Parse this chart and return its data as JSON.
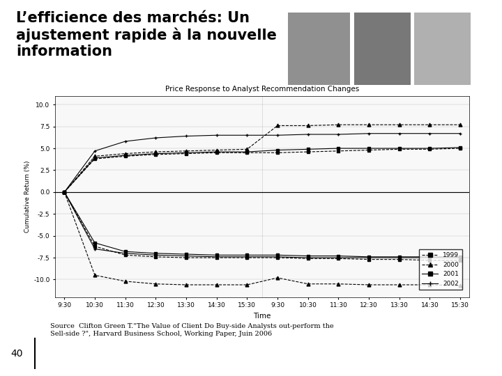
{
  "title": "L’efficience des marchés: Un\najustement rapide à la nouvelle\ninformation",
  "chart_title": "Price Response to Analyst Recommendation Changes",
  "ylabel": "Cumulative Return (%)",
  "xlabel": "Time",
  "source_text": "Source  Clifton Green T.\"The Value of Client Do Buy-side Analysts out-perform the\nSell-side ?\", Harvard Business School, Working Paper, Juin 2006",
  "page_number": "40",
  "ylim": [
    -12,
    11
  ],
  "yticks": [
    -10.0,
    -7.5,
    -5.0,
    -2.5,
    0.0,
    2.5,
    5.0,
    7.5,
    10.0
  ],
  "background_color": "#ffffff",
  "accent_color": "#d4820a",
  "time_labels": [
    "9:30",
    "10:30",
    "11:30",
    "12:30",
    "13:30",
    "14:30",
    "15:30",
    "9:30",
    "10:30",
    "11:30",
    "12:30",
    "13:30",
    "14:30",
    "15:30"
  ],
  "legend_years": [
    "1999",
    "2000",
    "2001",
    "2002"
  ],
  "series": {
    "upgrades": {
      "1999": [
        0,
        3.8,
        4.1,
        4.3,
        4.4,
        4.5,
        4.5,
        4.5,
        4.6,
        4.7,
        4.8,
        4.9,
        4.9,
        5.0
      ],
      "2000": [
        0,
        4.1,
        4.4,
        4.6,
        4.7,
        4.8,
        4.9,
        7.6,
        7.6,
        7.7,
        7.7,
        7.7,
        7.7,
        7.7
      ],
      "2001": [
        0,
        3.9,
        4.2,
        4.4,
        4.5,
        4.6,
        4.6,
        4.8,
        4.9,
        5.0,
        5.0,
        5.0,
        5.0,
        5.1
      ],
      "2002": [
        0,
        4.7,
        5.8,
        6.2,
        6.4,
        6.5,
        6.5,
        6.5,
        6.6,
        6.6,
        6.7,
        6.7,
        6.7,
        6.7
      ]
    },
    "downgrades": {
      "1999": [
        0,
        -6.2,
        -7.2,
        -7.4,
        -7.5,
        -7.5,
        -7.5,
        -7.5,
        -7.6,
        -7.6,
        -7.7,
        -7.7,
        -7.8,
        -7.8
      ],
      "2000": [
        0,
        -9.5,
        -10.2,
        -10.5,
        -10.6,
        -10.6,
        -10.6,
        -9.8,
        -10.5,
        -10.5,
        -10.6,
        -10.6,
        -10.6,
        -10.7
      ],
      "2001": [
        0,
        -5.8,
        -6.8,
        -7.0,
        -7.1,
        -7.2,
        -7.2,
        -7.2,
        -7.3,
        -7.3,
        -7.4,
        -7.4,
        -7.4,
        -7.4
      ],
      "2002": [
        0,
        -6.5,
        -7.0,
        -7.2,
        -7.3,
        -7.4,
        -7.4,
        -7.4,
        -7.5,
        -7.5,
        -7.5,
        -7.5,
        -7.5,
        -7.5
      ]
    }
  },
  "line_styles": {
    "1999": {
      "marker": "s",
      "linestyle": "--",
      "color": "black"
    },
    "2000": {
      "marker": "^",
      "linestyle": "--",
      "color": "black"
    },
    "2001": {
      "marker": "s",
      "linestyle": "-",
      "color": "black"
    },
    "2002": {
      "marker": "+",
      "linestyle": "-",
      "color": "black"
    }
  }
}
